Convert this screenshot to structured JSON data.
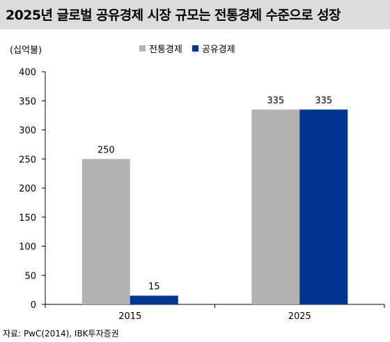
{
  "header": {
    "title": "2025년 글로벌 공유경제 시장 규모는 전통경제 수준으로 성장"
  },
  "chart_data": {
    "type": "bar",
    "unit_label": "(십억불)",
    "categories": [
      "2015",
      "2025"
    ],
    "series": [
      {
        "name": "전통경제",
        "values": [
          250,
          335
        ],
        "color": "#b2b2b2"
      },
      {
        "name": "공유경제",
        "values": [
          15,
          335
        ],
        "color": "#003594"
      }
    ],
    "data_labels": [
      [
        "250",
        "335"
      ],
      [
        "15",
        "335"
      ]
    ],
    "ylim": [
      0,
      400
    ],
    "yticks": [
      0,
      50,
      100,
      150,
      200,
      250,
      300,
      350,
      400
    ],
    "legend_position": "top-center",
    "grid": false
  },
  "footer": {
    "source": "자료: PwC(2014), IBK투자증권"
  }
}
